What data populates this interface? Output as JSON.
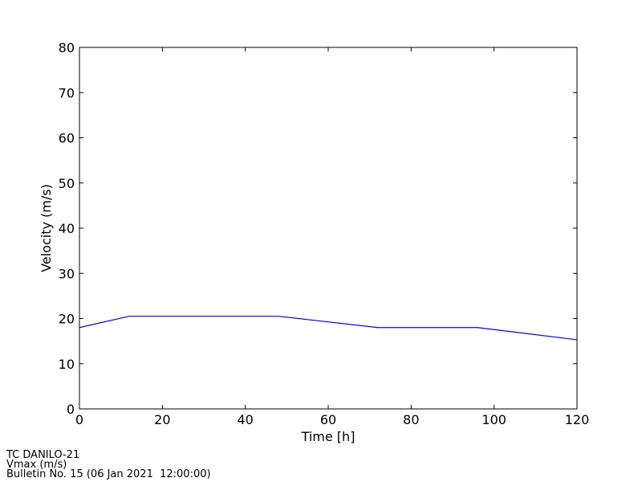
{
  "chart_data": {
    "type": "line",
    "x": [
      0,
      12,
      48,
      72,
      96,
      120
    ],
    "series": [
      {
        "color": "#0000ff",
        "values": [
          18,
          20.5,
          20.5,
          18,
          18,
          15.3
        ]
      }
    ],
    "xlim": [
      0,
      120
    ],
    "xticks": [
      0,
      20,
      40,
      60,
      80,
      100,
      120
    ],
    "ylim": [
      0,
      80
    ],
    "yticks": [
      0,
      10,
      20,
      30,
      40,
      50,
      60,
      70,
      80
    ],
    "xlabel": "Time [h]",
    "ylabel": "Velocity (m/s)",
    "grid": false,
    "footer": [
      "TC DANILO-21",
      "Vmax (m/s)",
      "Bulletin No. 15 (06 Jan 2021  12:00:00)"
    ]
  }
}
